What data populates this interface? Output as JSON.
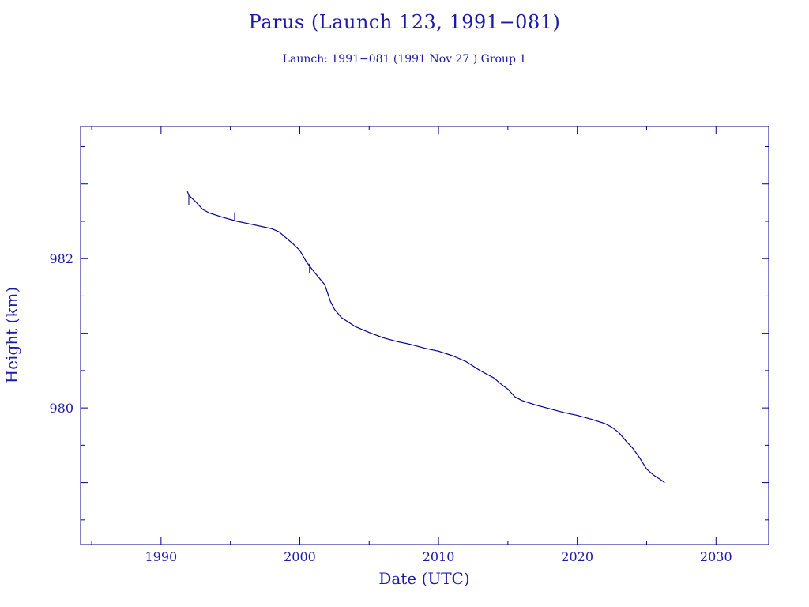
{
  "header": {
    "title": "Parus (Launch 123, 1991−081)",
    "subtitle": "Launch: 1991−081  (1991 Nov 27 )  Group 1"
  },
  "colors": {
    "axis": "#00008B",
    "text": "#1a1aa6",
    "line": "#00008B",
    "background": "#ffffff"
  },
  "chart_data": {
    "type": "line",
    "title": "Parus (Launch 123, 1991−081)",
    "subtitle": "Launch: 1991−081  (1991 Nov 27 )  Group 1",
    "xlabel": "Date (UTC)",
    "ylabel": "Height (km)",
    "xlim": [
      1984.2,
      2033.8
    ],
    "ylim": [
      978.17,
      983.77
    ],
    "xticks": [
      1990,
      2000,
      2010,
      2020,
      2030
    ],
    "xtick_labels": [
      "1990",
      "2000",
      "2010",
      "2020",
      "2030"
    ],
    "yticks": [
      980,
      982
    ],
    "ytick_labels": [
      "980",
      "982"
    ],
    "grid": false,
    "series": [
      {
        "x": [
          1991.9,
          1992.0,
          1992.5,
          1993.0,
          1993.5,
          1994.5,
          1995.5,
          1996.5,
          1997.5,
          1998.0,
          1998.5,
          1999.0,
          1999.5,
          2000.0,
          2000.5,
          2001.0,
          2001.4,
          2001.8,
          2002.2,
          2002.5,
          2003.0,
          2003.5,
          2004.0,
          2005.0,
          2006.0,
          2007.0,
          2008.0,
          2009.0,
          2010.0,
          2011.0,
          2012.0,
          2013.0,
          2014.0,
          2014.5,
          2015.0,
          2015.5,
          2016.0,
          2017.0,
          2018.0,
          2019.0,
          2020.0,
          2021.0,
          2022.0,
          2022.5,
          2023.0,
          2023.5,
          2024.0,
          2024.5,
          2025.0,
          2025.5,
          2026.0,
          2026.3
        ],
        "y": [
          982.9,
          982.85,
          982.76,
          982.66,
          982.61,
          982.55,
          982.5,
          982.46,
          982.42,
          982.4,
          982.36,
          982.28,
          982.2,
          982.11,
          981.95,
          981.83,
          981.74,
          981.65,
          981.43,
          981.32,
          981.21,
          981.15,
          981.09,
          981.01,
          980.94,
          980.89,
          980.85,
          980.8,
          980.76,
          980.7,
          980.62,
          980.5,
          980.4,
          980.32,
          980.25,
          980.15,
          980.1,
          980.04,
          979.99,
          979.94,
          979.9,
          979.85,
          979.79,
          979.74,
          979.67,
          979.56,
          979.46,
          979.33,
          979.18,
          979.1,
          979.04,
          979.0
        ]
      }
    ],
    "spikes": [
      {
        "x": 1992.0,
        "y_from": 982.85,
        "y_to": 982.72
      },
      {
        "x": 1995.3,
        "y_from": 982.52,
        "y_to": 982.62
      },
      {
        "x": 2000.7,
        "y_from": 981.93,
        "y_to": 981.8
      }
    ]
  }
}
